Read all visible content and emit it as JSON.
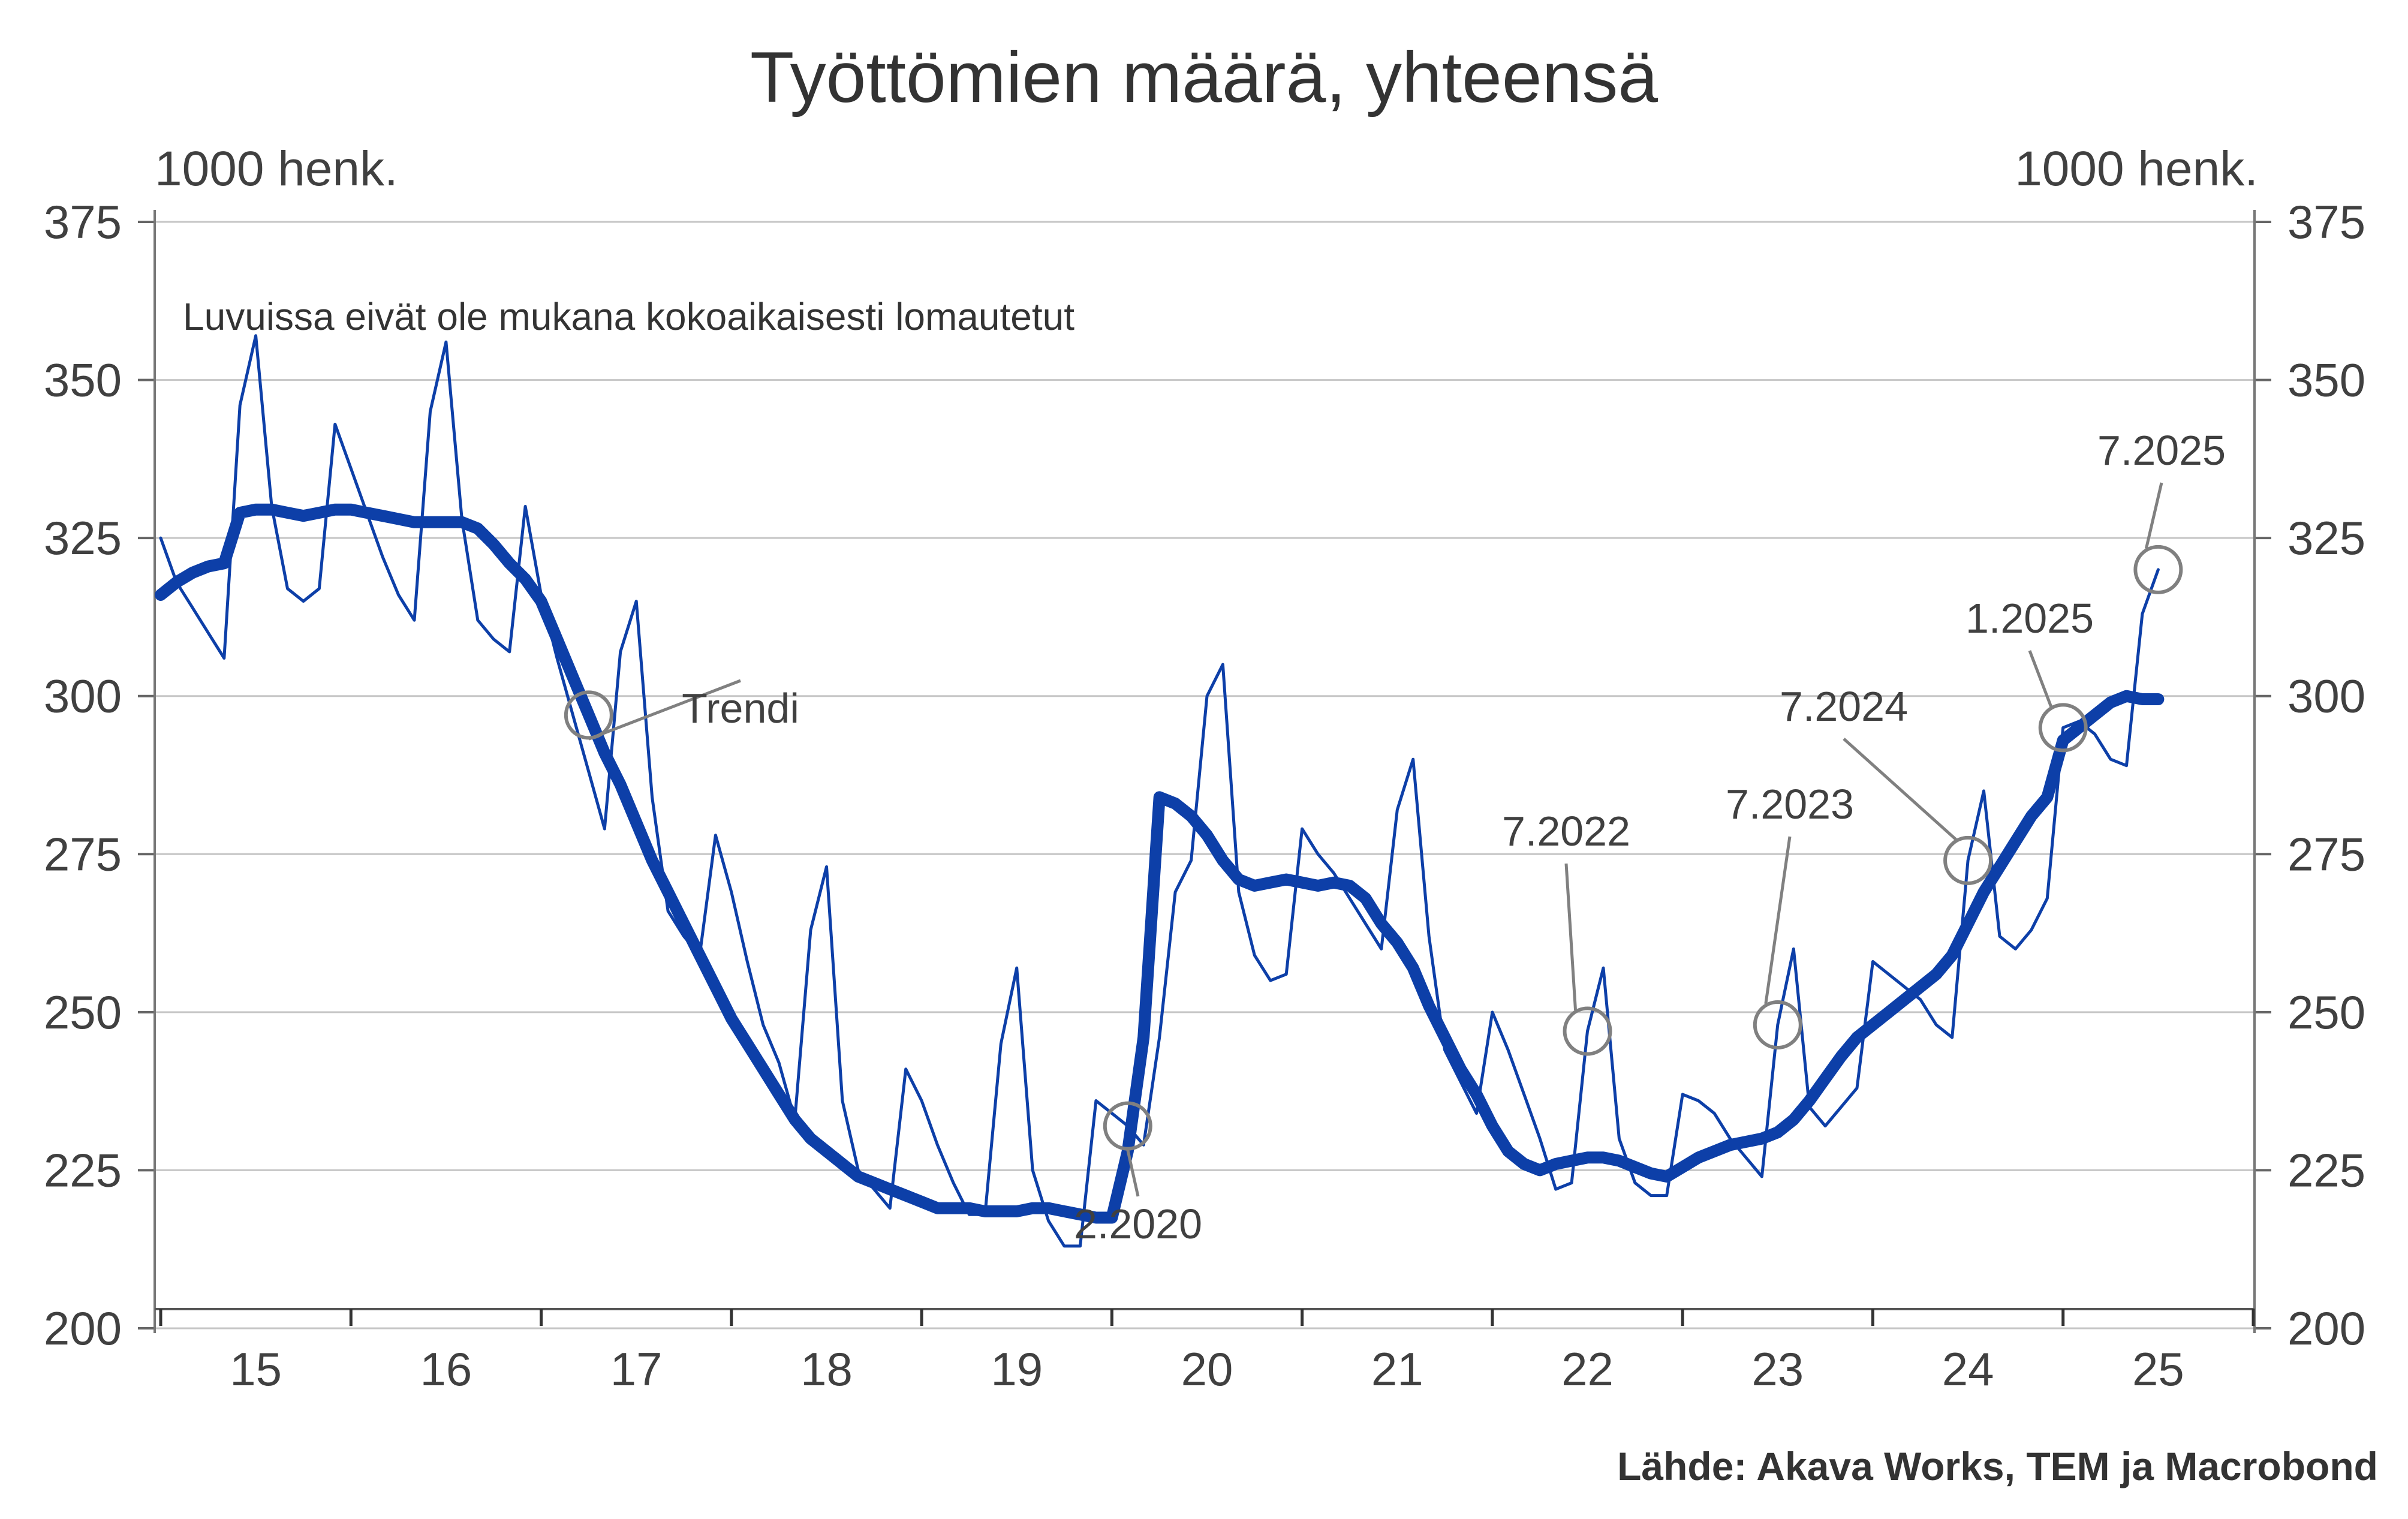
{
  "chart_data": {
    "type": "line",
    "title": "Työttömien määrä, yhteensä",
    "ylabel_left": "1000 henk.",
    "ylabel_right": "1000 henk.",
    "note": "Luvuissa eivät ole mukana kokoaikaisesti lomautetut",
    "source": "Lähde: Akava Works, TEM ja Macrobond",
    "ylim": [
      200,
      375
    ],
    "yticks": [
      200,
      225,
      250,
      275,
      300,
      325,
      350,
      375
    ],
    "x_start": "2015-01",
    "x_end": "2025-07",
    "x_tick_labels": [
      "15",
      "16",
      "17",
      "18",
      "19",
      "20",
      "21",
      "22",
      "23",
      "24",
      "25"
    ],
    "grid": true,
    "series": [
      {
        "name": "",
        "color": "#0d3fa8",
        "values": [
          325,
          318,
          314,
          310,
          306,
          346,
          357,
          330,
          317,
          315,
          317,
          343,
          336,
          329,
          322,
          316,
          312,
          345,
          356,
          328,
          312,
          309,
          307,
          330,
          316,
          306,
          297,
          288,
          279,
          307,
          315,
          284,
          266,
          262,
          259,
          278,
          269,
          258,
          248,
          242,
          233,
          263,
          273,
          236,
          225,
          222,
          219,
          241,
          236,
          229,
          223,
          218,
          218,
          245,
          257,
          225,
          217,
          213,
          213,
          236,
          234,
          232,
          229,
          246,
          269,
          274,
          300,
          305,
          269,
          259,
          255,
          256,
          279,
          275,
          272,
          268,
          264,
          260,
          282,
          290,
          262,
          244,
          239,
          234,
          250,
          244,
          237,
          230,
          222,
          223,
          247,
          257,
          230,
          223,
          221,
          221,
          237,
          236,
          234,
          230,
          227,
          224,
          248,
          260,
          235,
          232,
          235,
          238,
          258,
          256,
          254,
          252,
          248,
          246,
          274,
          285,
          262,
          260,
          263,
          268,
          295,
          296,
          294,
          290,
          289,
          313,
          320
        ]
      },
      {
        "name": "Trendi",
        "color": "#0d3fa8",
        "values": [
          316,
          318,
          319.5,
          320.5,
          321,
          329,
          329.5,
          329.5,
          329,
          328.5,
          329,
          329.5,
          329.5,
          329,
          328.5,
          328,
          327.5,
          327.5,
          327.5,
          327.5,
          326.5,
          324,
          321,
          318.5,
          315,
          309,
          303,
          297,
          291,
          286,
          280,
          274,
          269,
          264,
          259,
          254,
          249,
          245,
          241,
          237,
          233,
          230,
          228,
          226,
          224,
          223,
          222,
          221,
          220,
          219,
          219,
          219,
          218.5,
          218.5,
          218.5,
          219,
          219,
          218.5,
          218,
          217.5,
          217.5,
          228,
          246,
          284,
          283,
          281,
          278,
          274,
          271,
          270,
          270.5,
          271,
          270.5,
          270,
          270.5,
          270,
          268,
          264,
          261,
          257,
          251,
          246,
          241,
          237,
          232,
          228,
          226,
          225,
          226,
          226.5,
          227,
          227,
          226.5,
          225.5,
          224.5,
          224,
          225.5,
          227,
          228,
          229,
          229.5,
          230,
          231,
          233,
          236,
          239.5,
          243,
          246,
          248,
          250,
          252,
          254,
          256,
          259,
          264,
          269,
          273,
          277,
          281,
          284,
          293,
          295,
          297,
          299,
          300,
          299.5,
          299.5
        ]
      }
    ],
    "annotations": [
      {
        "label": "Trendi",
        "date": "2017-04",
        "series": 1
      },
      {
        "label": "2.2020",
        "date": "2020-02",
        "series": 0
      },
      {
        "label": "7.2022",
        "date": "2022-07",
        "series": 0
      },
      {
        "label": "7.2023",
        "date": "2023-07",
        "series": 0
      },
      {
        "label": "7.2024",
        "date": "2024-07",
        "series": 0
      },
      {
        "label": "1.2025",
        "date": "2025-01",
        "series": 0
      },
      {
        "label": "7.2025",
        "date": "2025-07",
        "series": 0
      }
    ]
  }
}
